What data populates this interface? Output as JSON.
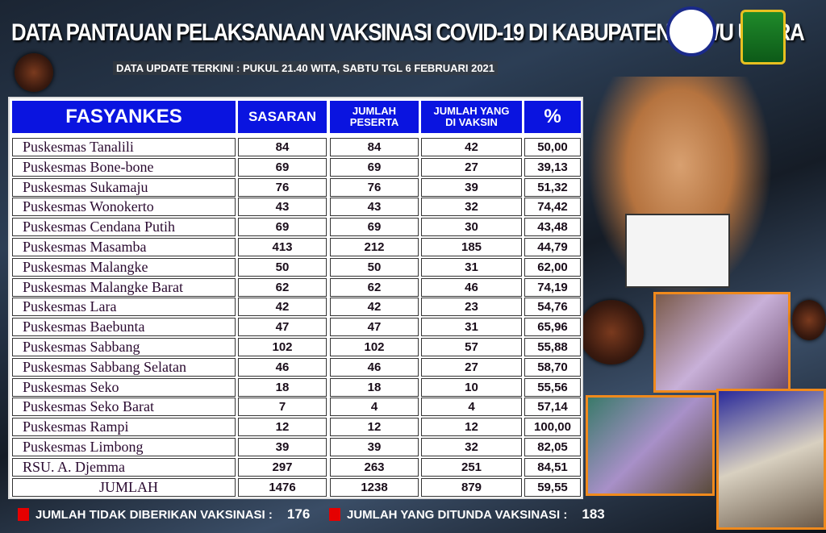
{
  "title": "DATA PANTAUAN PELAKSANAAN VAKSINASI COVID-19 DI KABUPATEN LUWU UTARA",
  "subtitle": "DATA UPDATE TERKINI : PUKUL 21.40 WITA, SABTU TGL 6 FEBRUARI 2021",
  "table": {
    "headers": [
      "FASYANKES",
      "SASARAN",
      "JUMLAH PESERTA",
      "JUMLAH YANG DI VAKSIN",
      "%"
    ],
    "rows": [
      [
        "Puskesmas Tanalili",
        "84",
        "84",
        "42",
        "50,00"
      ],
      [
        "Puskesmas Bone-bone",
        "69",
        "69",
        "27",
        "39,13"
      ],
      [
        "Puskesmas Sukamaju",
        "76",
        "76",
        "39",
        "51,32"
      ],
      [
        "Puskesmas Wonokerto",
        "43",
        "43",
        "32",
        "74,42"
      ],
      [
        "Puskesmas Cendana Putih",
        "69",
        "69",
        "30",
        "43,48"
      ],
      [
        "Puskesmas Masamba",
        "413",
        "212",
        "185",
        "44,79"
      ],
      [
        "Puskesmas Malangke",
        "50",
        "50",
        "31",
        "62,00"
      ],
      [
        "Puskesmas Malangke Barat",
        "62",
        "62",
        "46",
        "74,19"
      ],
      [
        "Puskesmas Lara",
        "42",
        "42",
        "23",
        "54,76"
      ],
      [
        "Puskesmas Baebunta",
        "47",
        "47",
        "31",
        "65,96"
      ],
      [
        "Puskesmas Sabbang",
        "102",
        "102",
        "57",
        "55,88"
      ],
      [
        "Puskesmas Sabbang Selatan",
        "46",
        "46",
        "27",
        "58,70"
      ],
      [
        "Puskesmas Seko",
        "18",
        "18",
        "10",
        "55,56"
      ],
      [
        "Puskesmas Seko Barat",
        "7",
        "4",
        "4",
        "57,14"
      ],
      [
        "Puskesmas Rampi",
        "12",
        "12",
        "12",
        "100,00"
      ],
      [
        "Puskesmas Limbong",
        "39",
        "39",
        "32",
        "82,05"
      ],
      [
        "RSU. A. Djemma",
        "297",
        "263",
        "251",
        "84,51"
      ],
      [
        "JUMLAH",
        "1476",
        "1238",
        "879",
        "59,55"
      ]
    ]
  },
  "footer": [
    {
      "label": "JUMLAH TIDAK DIBERIKAN VAKSINASI :",
      "value": "176"
    },
    {
      "label": "JUMLAH YANG DITUNDA VAKSINASI :",
      "value": "183"
    }
  ],
  "colors": {
    "header_bg": "#0a14e0",
    "bullet": "#e50000",
    "photo_border": "#f08a1c"
  }
}
